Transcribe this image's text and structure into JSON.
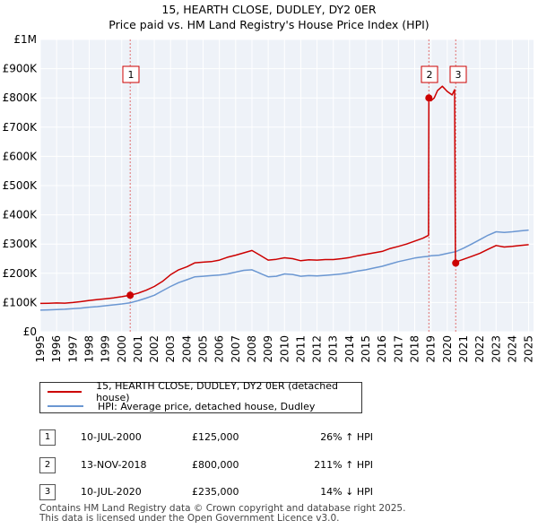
{
  "chart_data": {
    "type": "line",
    "title": "15, HEARTH CLOSE, DUDLEY, DY2 0ER",
    "subtitle": "Price paid vs. HM Land Registry's House Price Index (HPI)",
    "xlabel": "",
    "ylabel": "",
    "xlim": [
      1995,
      2025.3
    ],
    "ylim": [
      0,
      1000000
    ],
    "grid": true,
    "y_ticks": [
      0,
      100000,
      200000,
      300000,
      400000,
      500000,
      600000,
      700000,
      800000,
      900000,
      1000000
    ],
    "y_tick_labels": [
      "£0",
      "£100K",
      "£200K",
      "£300K",
      "£400K",
      "£500K",
      "£600K",
      "£700K",
      "£800K",
      "£900K",
      "£1M"
    ],
    "x_ticks": [
      1995,
      1996,
      1997,
      1998,
      1999,
      2000,
      2001,
      2002,
      2003,
      2004,
      2005,
      2006,
      2007,
      2008,
      2009,
      2010,
      2011,
      2012,
      2013,
      2014,
      2015,
      2016,
      2017,
      2018,
      2019,
      2020,
      2021,
      2022,
      2023,
      2024,
      2025
    ],
    "x_tick_labels": [
      "1995",
      "1996",
      "1997",
      "1998",
      "1999",
      "2000",
      "2001",
      "2002",
      "2003",
      "2004",
      "2005",
      "2006",
      "2007",
      "2008",
      "2009",
      "2010",
      "2011",
      "2012",
      "2013",
      "2014",
      "2015",
      "2016",
      "2017",
      "2018",
      "2019",
      "2020",
      "2021",
      "2022",
      "2023",
      "2024",
      "2025"
    ],
    "series": [
      {
        "name": "15, HEARTH CLOSE, DUDLEY, DY2 0ER (detached house)",
        "color": "#cc0000",
        "x": [
          1995.0,
          1995.5,
          1996.0,
          1996.5,
          1997.0,
          1997.5,
          1998.0,
          1998.5,
          1999.0,
          1999.5,
          2000.0,
          2000.52,
          2001.0,
          2001.5,
          2002.0,
          2002.5,
          2003.0,
          2003.5,
          2004.0,
          2004.5,
          2005.0,
          2005.5,
          2006.0,
          2006.5,
          2007.0,
          2007.5,
          2008.0,
          2008.5,
          2009.0,
          2009.5,
          2010.0,
          2010.5,
          2011.0,
          2011.5,
          2012.0,
          2012.5,
          2013.0,
          2013.5,
          2014.0,
          2014.5,
          2015.0,
          2015.5,
          2016.0,
          2016.5,
          2017.0,
          2017.5,
          2018.0,
          2018.5,
          2018.85,
          2018.87,
          2019.0,
          2019.2,
          2019.4,
          2019.7,
          2020.0,
          2020.3,
          2020.45,
          2020.5,
          2020.52,
          2020.7,
          2021.0,
          2021.5,
          2022.0,
          2022.5,
          2023.0,
          2023.5,
          2024.0,
          2024.5,
          2025.0
        ],
        "values": [
          97000,
          97500,
          98500,
          98000,
          100000,
          103000,
          107000,
          110000,
          113000,
          116000,
          120000,
          125000,
          132000,
          142000,
          155000,
          172000,
          195000,
          212000,
          222000,
          236000,
          238000,
          240000,
          245000,
          255000,
          262000,
          270000,
          278000,
          262000,
          245000,
          248000,
          253000,
          250000,
          243000,
          246000,
          245000,
          247000,
          247000,
          250000,
          254000,
          260000,
          265000,
          270000,
          275000,
          285000,
          292000,
          300000,
          310000,
          320000,
          330000,
          800000,
          790000,
          800000,
          825000,
          840000,
          822000,
          810000,
          828000,
          240000,
          235000,
          242000,
          248000,
          258000,
          268000,
          282000,
          295000,
          290000,
          292000,
          295000,
          298000
        ]
      },
      {
        "name": "HPI: Average price, detached house, Dudley",
        "color": "#6b97d2",
        "x": [
          1995.0,
          1995.5,
          1996.0,
          1996.5,
          1997.0,
          1997.5,
          1998.0,
          1998.5,
          1999.0,
          1999.5,
          2000.0,
          2000.52,
          2001.0,
          2001.5,
          2002.0,
          2002.5,
          2003.0,
          2003.5,
          2004.0,
          2004.5,
          2005.0,
          2005.5,
          2006.0,
          2006.5,
          2007.0,
          2007.5,
          2008.0,
          2008.5,
          2009.0,
          2009.5,
          2010.0,
          2010.5,
          2011.0,
          2011.5,
          2012.0,
          2012.5,
          2013.0,
          2013.5,
          2014.0,
          2014.5,
          2015.0,
          2015.5,
          2016.0,
          2016.5,
          2017.0,
          2017.5,
          2018.0,
          2018.5,
          2018.87,
          2019.0,
          2019.5,
          2020.0,
          2020.52,
          2021.0,
          2021.5,
          2022.0,
          2022.5,
          2023.0,
          2023.5,
          2024.0,
          2024.5,
          2025.0
        ],
        "values": [
          74000,
          75000,
          76000,
          77000,
          79000,
          81000,
          84000,
          86000,
          89000,
          92000,
          95000,
          99000,
          106000,
          115000,
          125000,
          140000,
          155000,
          168000,
          178000,
          188000,
          190000,
          192000,
          194000,
          198000,
          204000,
          210000,
          212000,
          200000,
          188000,
          190000,
          198000,
          196000,
          190000,
          192000,
          191000,
          193000,
          195000,
          198000,
          202000,
          208000,
          212000,
          218000,
          224000,
          232000,
          240000,
          246000,
          252000,
          256000,
          258000,
          260000,
          262000,
          268000,
          274000,
          286000,
          300000,
          315000,
          330000,
          342000,
          340000,
          342000,
          345000,
          348000
        ]
      }
    ],
    "sales": [
      {
        "label": "1",
        "x": 2000.52,
        "value": 125000
      },
      {
        "label": "2",
        "x": 2018.87,
        "value": 800000
      },
      {
        "label": "3",
        "x": 2020.52,
        "value": 235000
      }
    ]
  },
  "legend": {
    "items": [
      {
        "label": "15, HEARTH CLOSE, DUDLEY, DY2 0ER (detached house)",
        "color": "#cc0000"
      },
      {
        "label": "HPI: Average price, detached house, Dudley",
        "color": "#6b97d2"
      }
    ]
  },
  "transactions": [
    {
      "num": "1",
      "date": "10-JUL-2000",
      "price": "£125,000",
      "hpi": "26% ↑ HPI"
    },
    {
      "num": "2",
      "date": "13-NOV-2018",
      "price": "£800,000",
      "hpi": "211% ↑ HPI"
    },
    {
      "num": "3",
      "date": "10-JUL-2020",
      "price": "£235,000",
      "hpi": "14% ↓ HPI"
    }
  ],
  "footer": {
    "line1": "Contains HM Land Registry data © Crown copyright and database right 2025.",
    "line2": "This data is licensed under the Open Government Licence v3.0."
  }
}
